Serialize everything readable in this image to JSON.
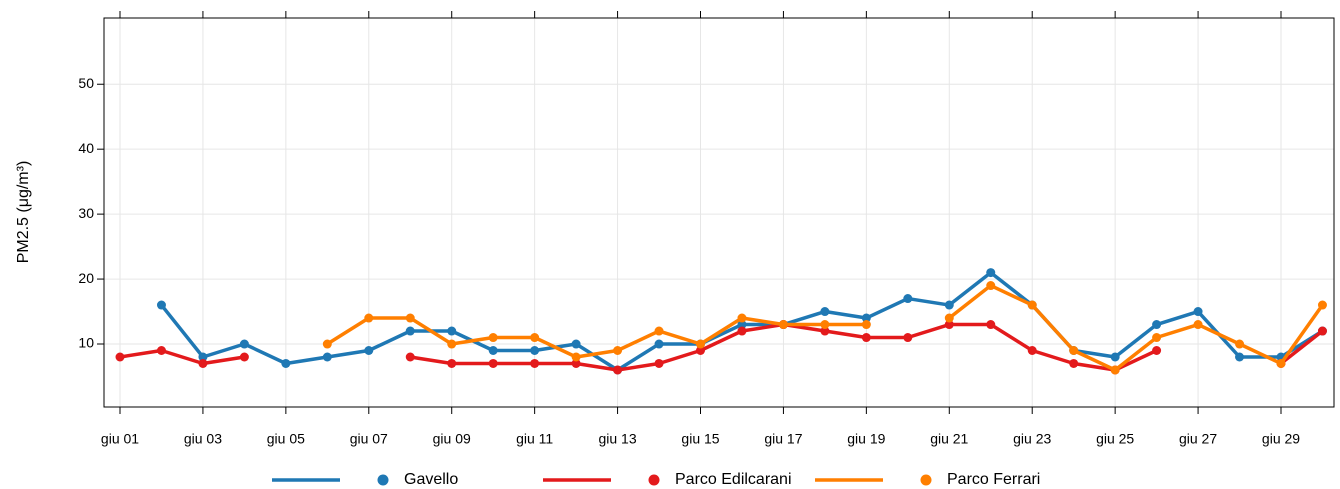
{
  "chart_data": {
    "type": "line",
    "y_label": "PM2.5 (μg/m³)",
    "categories": [
      "giu 01",
      null,
      "giu 03",
      null,
      "giu 05",
      null,
      "giu 07",
      null,
      "giu 09",
      null,
      "giu 11",
      null,
      "giu 13",
      null,
      "giu 15",
      null,
      "giu 17",
      null,
      "giu 19",
      null,
      "giu 21",
      null,
      "giu 23",
      null,
      "giu 25",
      null,
      "giu 27",
      null,
      "giu 29",
      null
    ],
    "series": [
      {
        "name": "Gavello",
        "color": "#1f78b4",
        "values": [
          null,
          16,
          8,
          10,
          7,
          8,
          9,
          12,
          12,
          9,
          9,
          10,
          6,
          10,
          10,
          13,
          13,
          15,
          14,
          17,
          16,
          21,
          16,
          9,
          8,
          13,
          15,
          8,
          8,
          12
        ]
      },
      {
        "name": "Parco Edilcarani",
        "color": "#e31a1c",
        "values": [
          8,
          9,
          7,
          8,
          null,
          null,
          null,
          8,
          7,
          7,
          7,
          7,
          6,
          7,
          9,
          12,
          13,
          12,
          11,
          11,
          13,
          13,
          9,
          7,
          6,
          9,
          null,
          null,
          7,
          12
        ]
      },
      {
        "name": "Parco Ferrari",
        "color": "#ff7f00",
        "values": [
          null,
          null,
          null,
          null,
          null,
          10,
          14,
          14,
          10,
          11,
          11,
          8,
          9,
          12,
          10,
          14,
          13,
          13,
          13,
          null,
          14,
          19,
          16,
          9,
          6,
          11,
          13,
          10,
          7,
          16
        ]
      }
    ],
    "ylim": [
      0.3,
      60.2
    ],
    "yticks": [
      10,
      20,
      30,
      40,
      50
    ],
    "grid": true,
    "legend": "bottom"
  }
}
